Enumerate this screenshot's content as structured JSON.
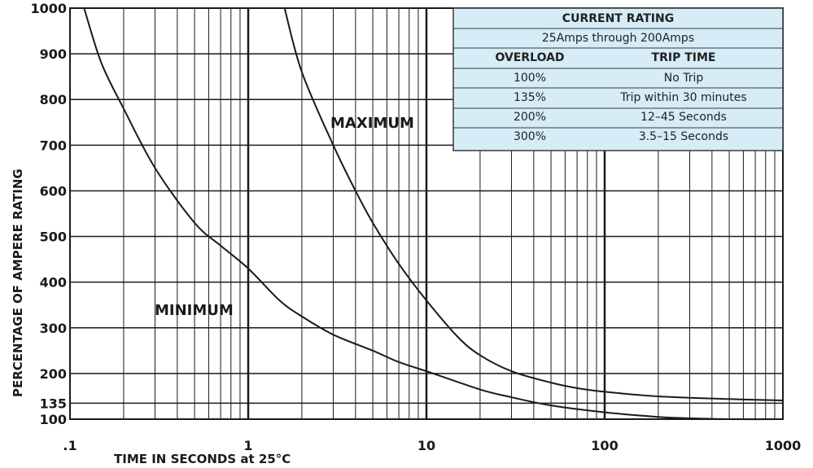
{
  "chart_data": {
    "type": "line",
    "x_scale": "log",
    "xlim": [
      0.1,
      1000
    ],
    "ylim": [
      100,
      1000
    ],
    "xlabel": "TIME IN SECONDS at 25°C",
    "ylabel": "PERCENTAGE OF AMPERE RATING",
    "x_ticks": [
      {
        "value": 0.1,
        "label": ".1"
      },
      {
        "value": 1,
        "label": "1"
      },
      {
        "value": 10,
        "label": "10"
      },
      {
        "value": 100,
        "label": "100"
      },
      {
        "value": 1000,
        "label": "1000"
      }
    ],
    "y_ticks": [
      {
        "value": 1000,
        "label": "1000"
      },
      {
        "value": 900,
        "label": "900"
      },
      {
        "value": 800,
        "label": "800"
      },
      {
        "value": 700,
        "label": "700"
      },
      {
        "value": 600,
        "label": "600"
      },
      {
        "value": 500,
        "label": "500"
      },
      {
        "value": 400,
        "label": "400"
      },
      {
        "value": 300,
        "label": "300"
      },
      {
        "value": 200,
        "label": "200"
      },
      {
        "value": 135,
        "label": "135"
      },
      {
        "value": 100,
        "label": "100"
      }
    ],
    "grid": true,
    "series": [
      {
        "name": "MINIMUM",
        "x": [
          0.12,
          0.15,
          0.2,
          0.3,
          0.5,
          0.7,
          1,
          1.5,
          2,
          3,
          5,
          7,
          10,
          20,
          30,
          50,
          100,
          200,
          300,
          500,
          1000
        ],
        "y": [
          1000,
          880,
          780,
          650,
          530,
          480,
          430,
          360,
          325,
          285,
          250,
          225,
          205,
          165,
          148,
          130,
          115,
          105,
          102,
          100,
          100
        ]
      },
      {
        "name": "MAXIMUM",
        "x": [
          1.6,
          2,
          3,
          4,
          5,
          7,
          10,
          15,
          20,
          30,
          50,
          70,
          100,
          200,
          500,
          1000
        ],
        "y": [
          1000,
          860,
          700,
          600,
          530,
          440,
          360,
          280,
          240,
          205,
          180,
          168,
          160,
          150,
          144,
          141
        ]
      }
    ]
  },
  "rating_table": {
    "title": "CURRENT RATING",
    "subtitle": "25Amps through 200Amps",
    "headers": [
      "OVERLOAD",
      "TRIP TIME"
    ],
    "rows": [
      [
        "100%",
        "No Trip"
      ],
      [
        "135%",
        "Trip within 30 minutes"
      ],
      [
        "200%",
        "12–45 Seconds"
      ],
      [
        "300%",
        "3.5–15 Seconds"
      ]
    ],
    "fill_color": "#d6ecf6",
    "border_color": "#3a3a3a"
  },
  "colors": {
    "curve": "#1a1a1a",
    "grid": "#1a1a1a"
  }
}
